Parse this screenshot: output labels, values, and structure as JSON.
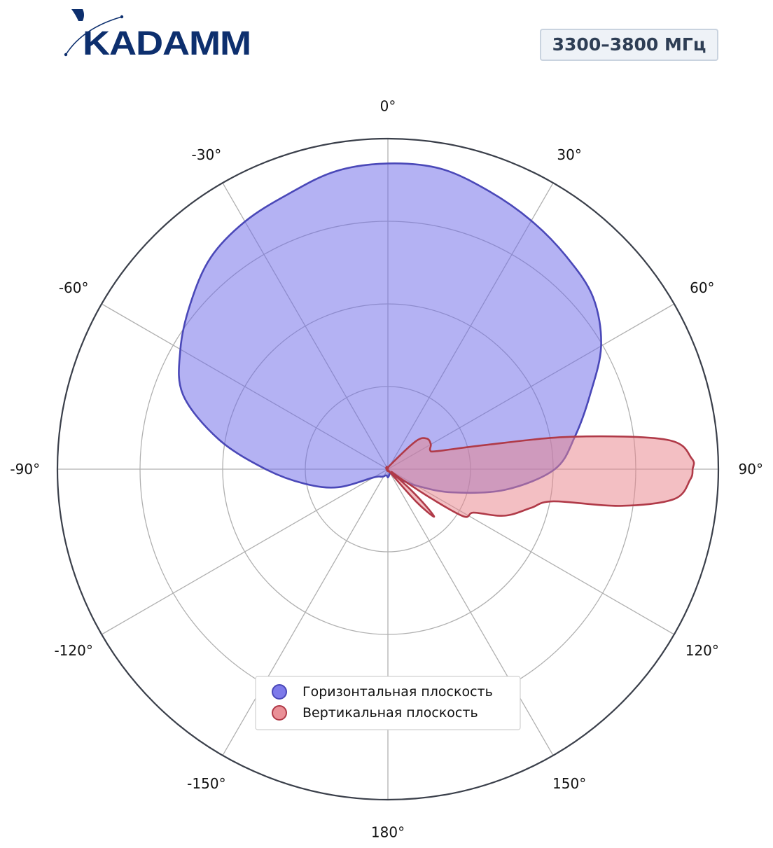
{
  "logo": {
    "text": "KADAMM",
    "color": "#0d2f6e"
  },
  "badge": {
    "text": "3300–3800 МГц"
  },
  "chart_data": {
    "type": "polar-area",
    "angle_unit": "deg",
    "angle_ticks": [
      0,
      30,
      60,
      90,
      120,
      150,
      180,
      -150,
      -120,
      -90,
      -60,
      -30
    ],
    "angle_tick_labels": [
      "0°",
      "30°",
      "60°",
      "90°",
      "120°",
      "150°",
      "180°",
      "-150°",
      "-120°",
      "-90°",
      "-60°",
      "-30°"
    ],
    "radial_ticks": [
      0.25,
      0.5,
      0.75,
      1.0
    ],
    "radial_range": [
      0,
      1
    ],
    "grid": true,
    "legend_position": "bottom-center",
    "series": [
      {
        "name": "Горизонтальная плоскость",
        "color": "#6f6ce8",
        "edge_color": "#4a48b8",
        "points": [
          [
            0,
            0.925
          ],
          [
            10,
            0.923
          ],
          [
            20,
            0.895
          ],
          [
            30,
            0.868
          ],
          [
            40,
            0.84
          ],
          [
            50,
            0.81
          ],
          [
            60,
            0.745
          ],
          [
            70,
            0.65
          ],
          [
            80,
            0.575
          ],
          [
            90,
            0.505
          ],
          [
            100,
            0.36
          ],
          [
            110,
            0.205
          ],
          [
            120,
            0.1
          ],
          [
            130,
            0.045
          ],
          [
            140,
            0.02
          ],
          [
            150,
            0.015
          ],
          [
            160,
            0.015
          ],
          [
            170,
            0.02
          ],
          [
            180,
            0.025
          ],
          [
            -170,
            0.02
          ],
          [
            -160,
            0.02
          ],
          [
            -150,
            0.025
          ],
          [
            -140,
            0.03
          ],
          [
            -120,
            0.05
          ],
          [
            -110,
            0.16
          ],
          [
            -100,
            0.255
          ],
          [
            -90,
            0.37
          ],
          [
            -80,
            0.52
          ],
          [
            -70,
            0.66
          ],
          [
            -60,
            0.725
          ],
          [
            -50,
            0.78
          ],
          [
            -40,
            0.835
          ],
          [
            -30,
            0.865
          ],
          [
            -20,
            0.885
          ],
          [
            -10,
            0.915
          ]
        ]
      },
      {
        "name": "Вертикальная плоскость",
        "color": "#e8848c",
        "edge_color": "#b03a48",
        "points": [
          [
            0,
            0.0
          ],
          [
            30,
            0.015
          ],
          [
            45,
            0.12
          ],
          [
            52,
            0.15
          ],
          [
            60,
            0.15
          ],
          [
            66,
            0.14
          ],
          [
            70,
            0.16
          ],
          [
            76,
            0.3
          ],
          [
            80,
            0.565
          ],
          [
            84,
            0.85
          ],
          [
            88,
            0.92
          ],
          [
            90,
            0.922
          ],
          [
            92,
            0.915
          ],
          [
            96,
            0.87
          ],
          [
            99,
            0.71
          ],
          [
            101,
            0.51
          ],
          [
            105,
            0.45
          ],
          [
            110,
            0.4
          ],
          [
            113,
            0.36
          ],
          [
            117,
            0.29
          ],
          [
            122,
            0.27
          ],
          [
            124,
            0.16
          ],
          [
            126,
            0.05
          ],
          [
            129,
            0.015
          ],
          [
            132,
            0.09
          ],
          [
            134,
            0.16
          ],
          [
            136,
            0.2
          ],
          [
            139,
            0.13
          ],
          [
            145,
            0.015
          ],
          [
            160,
            0.008
          ],
          [
            200,
            0.005
          ],
          [
            300,
            0.006
          ],
          [
            340,
            0.008
          ]
        ]
      }
    ]
  }
}
